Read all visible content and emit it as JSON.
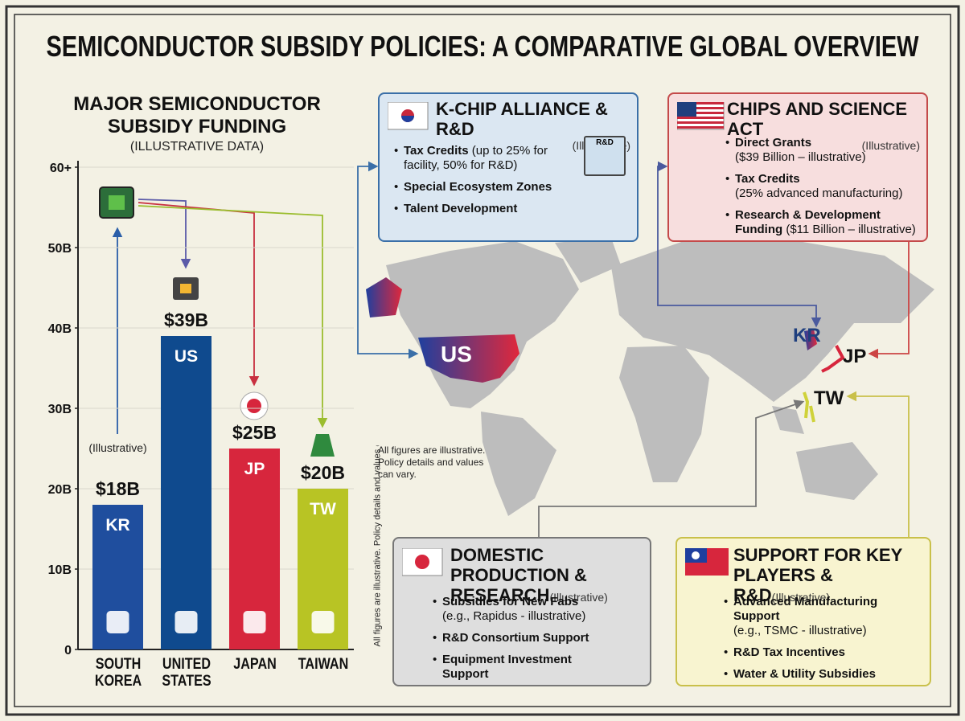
{
  "title": "SEMICONDUCTOR SUBSIDY POLICIES: A COMPARATIVE GLOBAL OVERVIEW",
  "chart_data": {
    "type": "bar",
    "title": "MAJOR SEMICONDUCTOR SUBSIDY FUNDING",
    "subtitle": "(ILLUSTRATIVE DATA)",
    "annotation": "(Illustrative)",
    "categories": [
      "SOUTH KOREA",
      "UNITED STATES",
      "JAPAN",
      "TAIWAN"
    ],
    "codes": [
      "KR",
      "US",
      "JP",
      "TW"
    ],
    "values": [
      18,
      39,
      25,
      20
    ],
    "value_labels": [
      "$18B",
      "$39B",
      "$25B",
      "$20B"
    ],
    "colors": [
      "#1f4e9e",
      "#0f4a8e",
      "#d7263d",
      "#b8c424"
    ],
    "ylim": [
      0,
      60
    ],
    "yticks": [
      0,
      {
        "value": 10,
        "label": "10B"
      },
      {
        "value": 20,
        "label": "20B"
      },
      {
        "value": 30,
        "label": "30B"
      },
      {
        "value": 40,
        "label": "40B"
      },
      {
        "value": 50,
        "label": "50B"
      },
      {
        "value": 60,
        "label": "60+"
      }
    ],
    "grid": true
  },
  "note": "All figures are illustrative. Policy details and values can vary.",
  "map_labels": [
    "US",
    "KR",
    "JP",
    "TW"
  ],
  "panels": [
    {
      "title": "K-CHIP ALLIANCE & R&D",
      "tag": "(Illustrative)",
      "icon_label": "R&D",
      "items": [
        {
          "head": "Tax Credits",
          "detail": "(up to 25% for facility, 50% for R&D)"
        },
        {
          "head": "Special Ecosystem Zones"
        },
        {
          "head": "Talent Development"
        }
      ]
    },
    {
      "title": "CHIPS AND SCIENCE ACT",
      "tag": "(Illustrative)",
      "items": [
        {
          "head": "Direct Grants",
          "detail": "($39 Billion – illustrative)"
        },
        {
          "head": "Tax Credits",
          "detail": "(25% advanced manufacturing)"
        },
        {
          "head": "Research & Development Funding",
          "detail": "($11 Billion – illustrative)"
        }
      ]
    },
    {
      "title": "DOMESTIC PRODUCTION & RESEARCH",
      "tag": "(Illustrative)",
      "items": [
        {
          "head": "Subsidies for New Fabs",
          "detail": "(e.g., Rapidus - illustrative)"
        },
        {
          "head": "R&D Consortium Support"
        },
        {
          "head": "Equipment Investment Support"
        }
      ]
    },
    {
      "title": "SUPPORT FOR KEY PLAYERS & R&D",
      "tag": "(Illustrative)",
      "items": [
        {
          "head": "Advanced Manufacturing Support",
          "detail": "(e.g., TSMC - illustrative)"
        },
        {
          "head": "R&D Tax Incentives"
        },
        {
          "head": "Water & Utility Subsidies"
        }
      ]
    }
  ]
}
